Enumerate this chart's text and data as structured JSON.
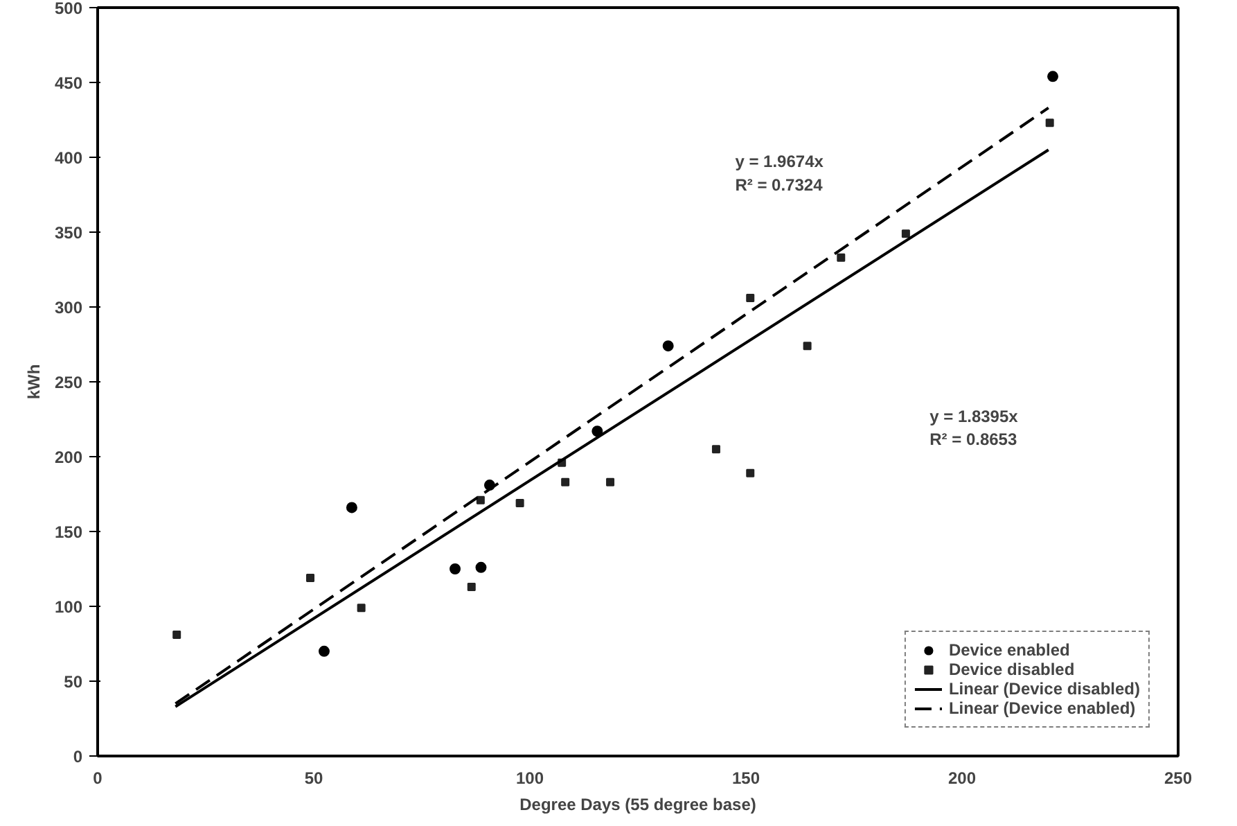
{
  "chart_data": {
    "type": "scatter",
    "xlabel": "Degree Days (55 degree base)",
    "ylabel": "kWh",
    "xlim": [
      0,
      250
    ],
    "ylim": [
      0,
      500
    ],
    "xticks": [
      0,
      50,
      100,
      150,
      200,
      250
    ],
    "yticks": [
      0,
      50,
      100,
      150,
      200,
      250,
      300,
      350,
      400,
      450,
      500
    ],
    "grid": false,
    "legend": "bottom right",
    "series": [
      {
        "name": "Device enabled",
        "marker": "circle",
        "color": "#000000",
        "x": [
          52.4,
          58.8,
          82.7,
          88.7,
          90.7,
          115.6,
          132,
          221
        ],
        "values": [
          70,
          166,
          125,
          126,
          181,
          217,
          274,
          454
        ]
      },
      {
        "name": "Device disabled",
        "marker": "square",
        "color": "#222222",
        "x": [
          18.3,
          49.2,
          61,
          86.5,
          88.6,
          97.7,
          107.4,
          108.2,
          118.6,
          143.1,
          151,
          151,
          164.2,
          172,
          187,
          220.3
        ],
        "values": [
          81,
          119,
          99,
          113,
          171,
          169,
          196,
          183,
          183,
          205,
          189,
          306,
          274,
          333,
          349,
          423
        ]
      },
      {
        "name": "Linear (Device disabled)",
        "type": "line",
        "line_style": "solid",
        "color": "#000000",
        "x": [
          18,
          220
        ],
        "values": [
          33,
          405
        ]
      },
      {
        "name": "Linear (Device enabled)",
        "type": "line",
        "line_style": "dashed",
        "color": "#000000",
        "x": [
          18,
          220
        ],
        "values": [
          35,
          433
        ]
      }
    ],
    "annotations": [
      "y = 1.9674x\nR² = 0.7324",
      "y = 1.8395x\nR² = 0.8653"
    ]
  }
}
